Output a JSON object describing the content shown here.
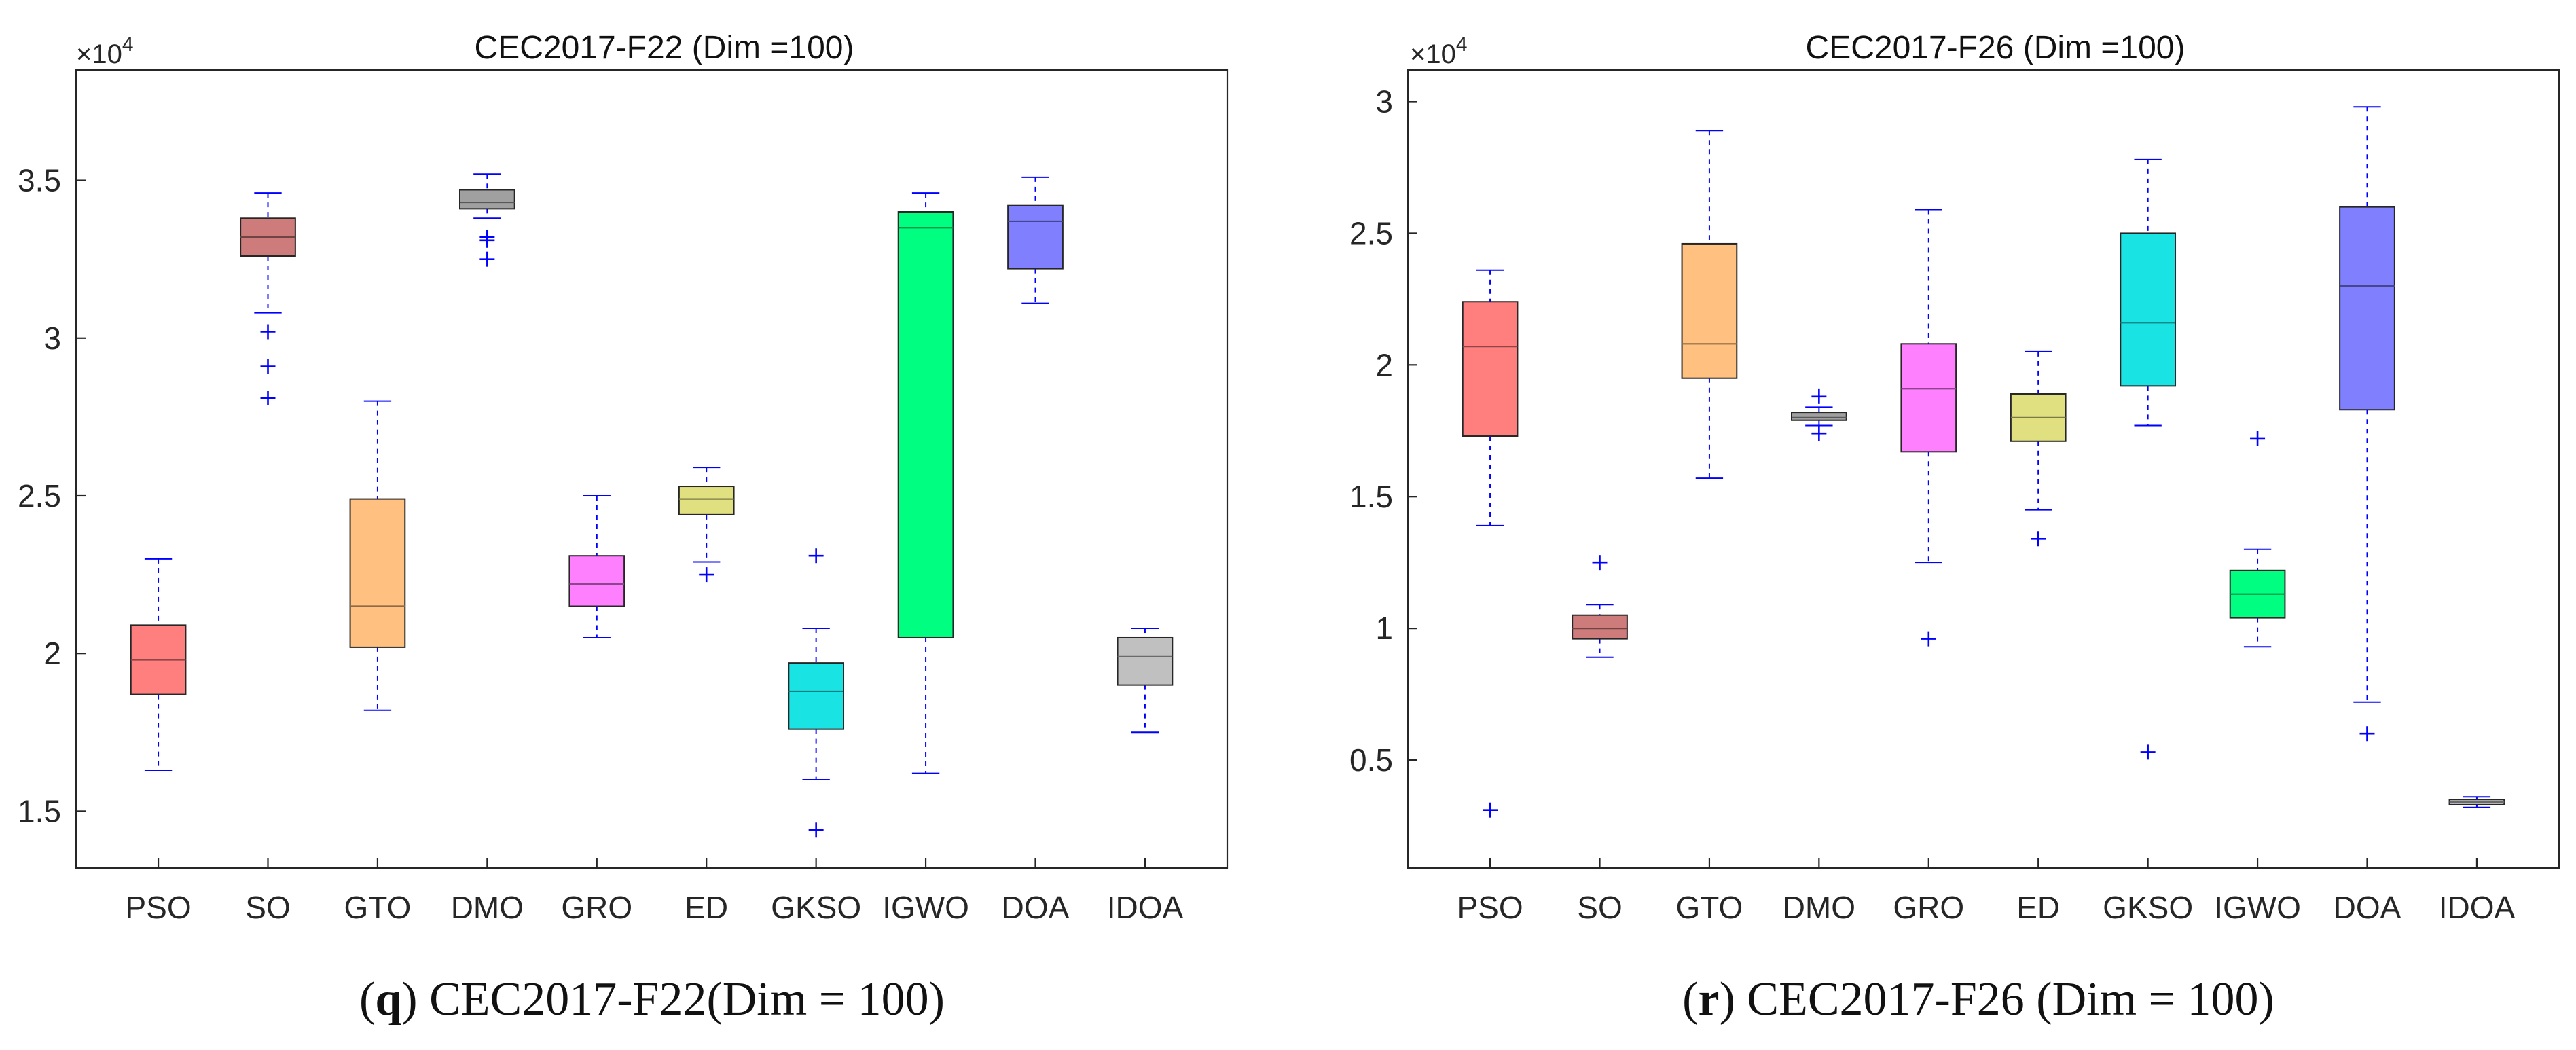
{
  "chart_data": [
    {
      "type": "box",
      "title": "CEC2017-F22 (Dim =100)",
      "exponent_prefix": "×10",
      "exponent_power": "4",
      "ylim": [
        1.32,
        3.85
      ],
      "yticks": [
        1.5,
        2,
        2.5,
        3,
        3.5
      ],
      "ytick_labels": [
        "1.5",
        "2",
        "2.5",
        "3",
        "3.5"
      ],
      "categories": [
        "PSO",
        "SO",
        "GTO",
        "DMO",
        "GRO",
        "ED",
        "GKSO",
        "IGWO",
        "DOA",
        "IDOA"
      ],
      "boxes": [
        {
          "label": "PSO",
          "whislo": 1.63,
          "q1": 1.87,
          "med": 1.98,
          "q3": 2.09,
          "whishi": 2.3,
          "fliers": [],
          "color": "#ff7f7f"
        },
        {
          "label": "SO",
          "whislo": 3.08,
          "q1": 3.26,
          "med": 3.32,
          "q3": 3.38,
          "whishi": 3.46,
          "fliers": [
            2.81,
            2.91,
            3.02
          ],
          "color": "#cd7b7b"
        },
        {
          "label": "GTO",
          "whislo": 1.82,
          "q1": 2.02,
          "med": 2.15,
          "q3": 2.49,
          "whishi": 2.8,
          "fliers": [],
          "color": "#ffc080"
        },
        {
          "label": "DMO",
          "whislo": 3.38,
          "q1": 3.41,
          "med": 3.43,
          "q3": 3.47,
          "whishi": 3.52,
          "fliers": [
            3.25,
            3.31,
            3.32
          ],
          "color": "#a0a0a0"
        },
        {
          "label": "GRO",
          "whislo": 2.05,
          "q1": 2.15,
          "med": 2.22,
          "q3": 2.31,
          "whishi": 2.5,
          "fliers": [],
          "color": "#ff80ff"
        },
        {
          "label": "ED",
          "whislo": 2.29,
          "q1": 2.44,
          "med": 2.49,
          "q3": 2.53,
          "whishi": 2.59,
          "fliers": [
            2.25
          ],
          "color": "#e0e080"
        },
        {
          "label": "GKSO",
          "whislo": 1.6,
          "q1": 1.76,
          "med": 1.88,
          "q3": 1.97,
          "whishi": 2.08,
          "fliers": [
            1.44,
            2.31
          ],
          "color": "#19e3e3"
        },
        {
          "label": "IGWO",
          "whislo": 1.62,
          "q1": 2.05,
          "med": 3.35,
          "q3": 3.4,
          "whishi": 3.46,
          "fliers": [],
          "color": "#00ff80"
        },
        {
          "label": "DOA",
          "whislo": 3.11,
          "q1": 3.22,
          "med": 3.37,
          "q3": 3.42,
          "whishi": 3.51,
          "fliers": [],
          "color": "#8080ff"
        },
        {
          "label": "IDOA",
          "whislo": 1.75,
          "q1": 1.9,
          "med": 1.99,
          "q3": 2.05,
          "whishi": 2.08,
          "fliers": [],
          "color": "#c0c0c0"
        }
      ],
      "caption_letter": "q",
      "caption_text": " CEC2017-F22(Dim = 100)"
    },
    {
      "type": "box",
      "title": "CEC2017-F26 (Dim =100)",
      "exponent_prefix": "×10",
      "exponent_power": "4",
      "ylim": [
        0.09,
        3.12
      ],
      "yticks": [
        0.5,
        1,
        1.5,
        2,
        2.5,
        3
      ],
      "ytick_labels": [
        "0.5",
        "1",
        "1.5",
        "2",
        "2.5",
        "3"
      ],
      "categories": [
        "PSO",
        "SO",
        "GTO",
        "DMO",
        "GRO",
        "ED",
        "GKSO",
        "IGWO",
        "DOA",
        "IDOA"
      ],
      "boxes": [
        {
          "label": "PSO",
          "whislo": 1.39,
          "q1": 1.73,
          "med": 2.07,
          "q3": 2.24,
          "whishi": 2.36,
          "fliers": [
            0.31
          ],
          "color": "#ff7f7f"
        },
        {
          "label": "SO",
          "whislo": 0.89,
          "q1": 0.96,
          "med": 1.0,
          "q3": 1.05,
          "whishi": 1.09,
          "fliers": [
            1.25
          ],
          "color": "#cd7b7b"
        },
        {
          "label": "GTO",
          "whislo": 1.57,
          "q1": 1.95,
          "med": 2.08,
          "q3": 2.46,
          "whishi": 2.89,
          "fliers": [],
          "color": "#ffc080"
        },
        {
          "label": "DMO",
          "whislo": 1.77,
          "q1": 1.79,
          "med": 1.8,
          "q3": 1.82,
          "whishi": 1.84,
          "fliers": [
            1.74,
            1.88
          ],
          "color": "#a0a0a0"
        },
        {
          "label": "GRO",
          "whislo": 1.25,
          "q1": 1.67,
          "med": 1.91,
          "q3": 2.08,
          "whishi": 2.59,
          "fliers": [
            0.96
          ],
          "color": "#ff80ff"
        },
        {
          "label": "ED",
          "whislo": 1.45,
          "q1": 1.71,
          "med": 1.8,
          "q3": 1.89,
          "whishi": 2.05,
          "fliers": [
            1.34
          ],
          "color": "#e0e080"
        },
        {
          "label": "GKSO",
          "whislo": 1.77,
          "q1": 1.92,
          "med": 2.16,
          "q3": 2.5,
          "whishi": 2.78,
          "fliers": [
            0.53
          ],
          "color": "#19e3e3"
        },
        {
          "label": "IGWO",
          "whislo": 0.93,
          "q1": 1.04,
          "med": 1.13,
          "q3": 1.22,
          "whishi": 1.3,
          "fliers": [
            1.72
          ],
          "color": "#00ff80"
        },
        {
          "label": "DOA",
          "whislo": 0.72,
          "q1": 1.83,
          "med": 2.3,
          "q3": 2.6,
          "whishi": 2.98,
          "fliers": [
            0.6
          ],
          "color": "#8080ff"
        },
        {
          "label": "IDOA",
          "whislo": 0.32,
          "q1": 0.33,
          "med": 0.34,
          "q3": 0.35,
          "whishi": 0.36,
          "fliers": [],
          "color": "#c0c0c0"
        }
      ],
      "caption_letter": "r",
      "caption_text": " CEC2017-F26 (Dim = 100)"
    }
  ]
}
